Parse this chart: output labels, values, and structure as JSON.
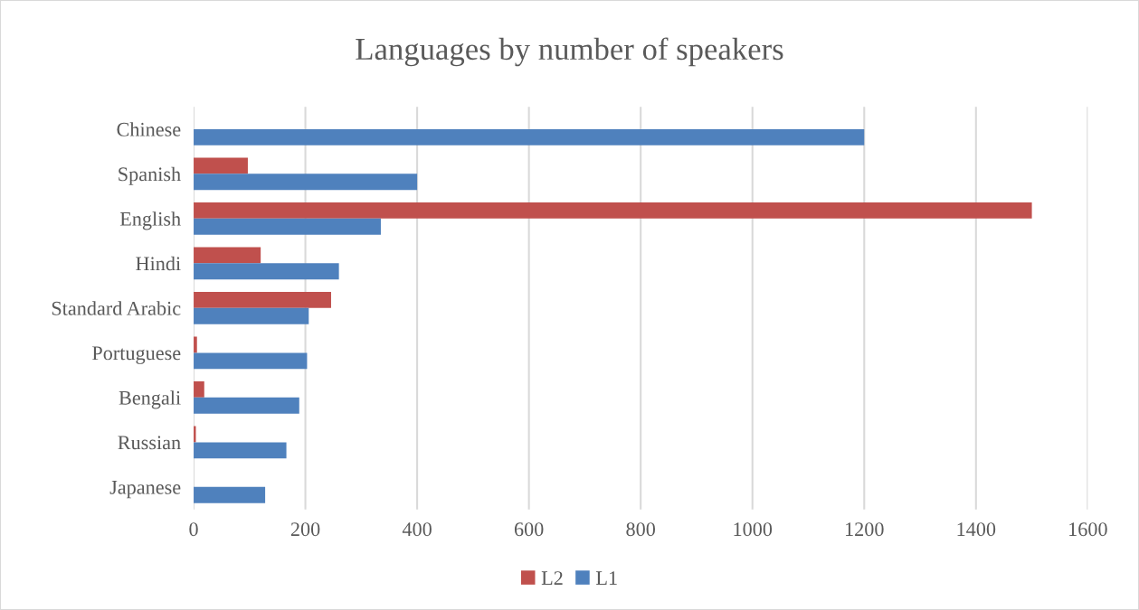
{
  "chart_data": {
    "type": "bar",
    "orientation": "horizontal",
    "title": "Languages by number of speakers",
    "categories": [
      "Chinese",
      "Spanish",
      "English",
      "Hindi",
      "Standard Arabic",
      "Portuguese",
      "Bengali",
      "Russian",
      "Japanese"
    ],
    "series": [
      {
        "name": "L2",
        "color": "#c0504d",
        "values": [
          null,
          97,
          1500,
          120,
          246,
          6,
          19,
          4,
          0
        ]
      },
      {
        "name": "L1",
        "color": "#4f81bd",
        "values": [
          1200,
          400,
          335,
          260,
          206,
          203,
          189,
          166,
          128
        ]
      }
    ],
    "xlim": [
      0,
      1600
    ],
    "xticks": [
      0,
      200,
      400,
      600,
      800,
      1000,
      1200,
      1400,
      1600
    ],
    "grid": "x",
    "legend": "bottom"
  }
}
